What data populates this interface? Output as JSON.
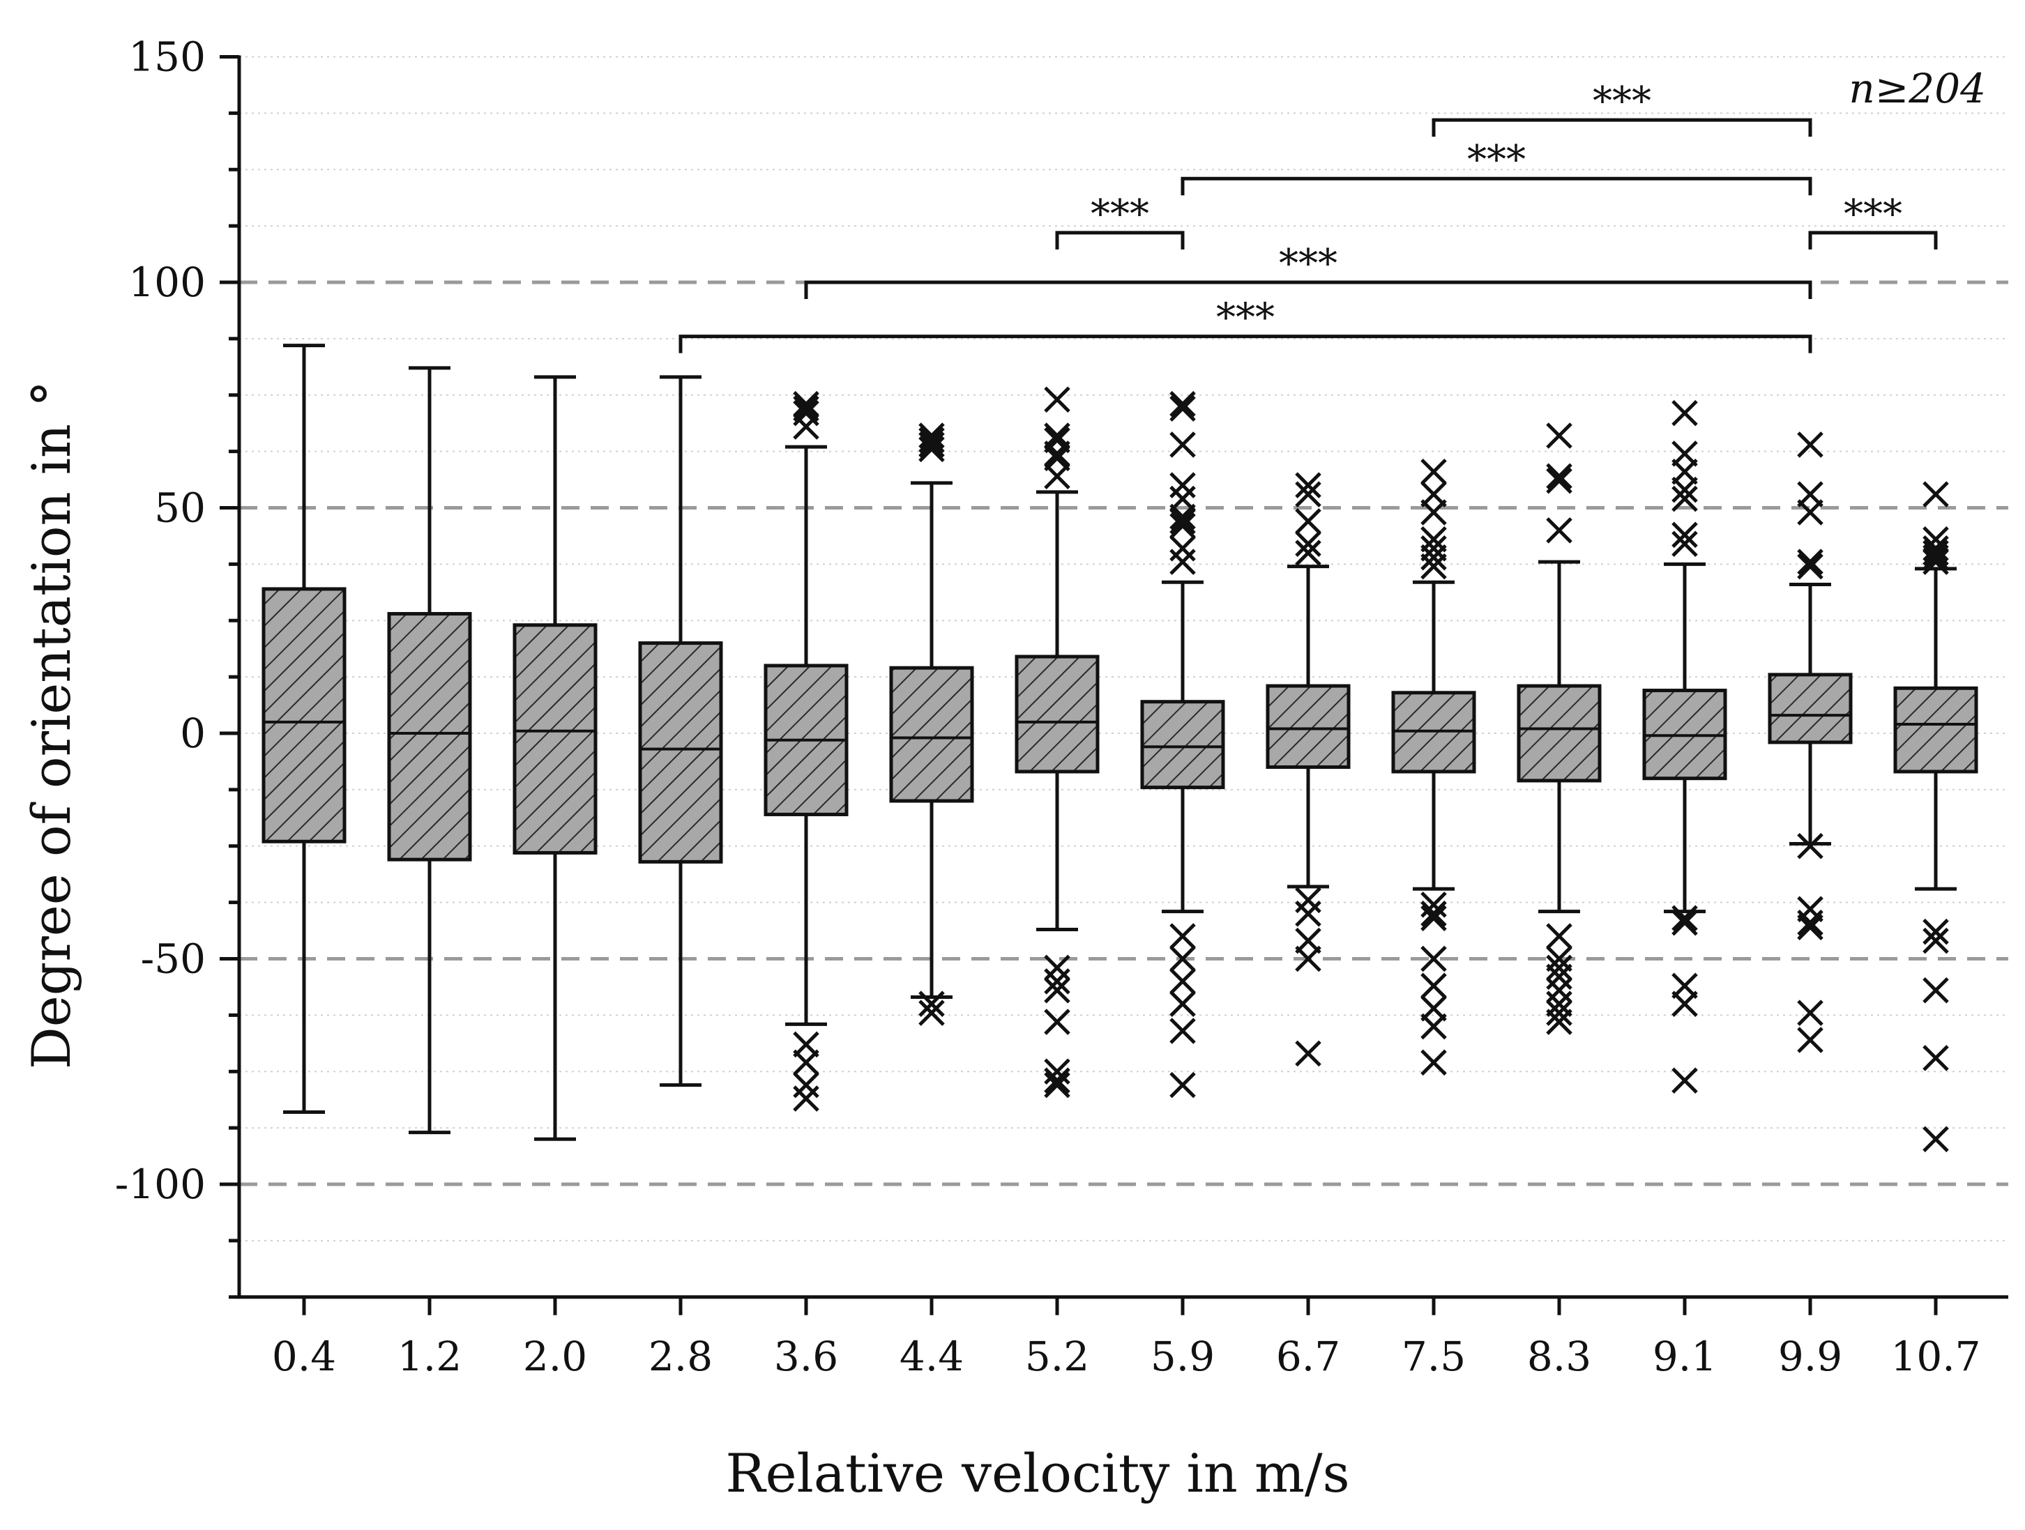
{
  "chart_data": {
    "type": "box",
    "title": "",
    "xlabel": "Relative velocity in m/s",
    "ylabel": "Degree of orientation in °",
    "ylim": [
      -125,
      150
    ],
    "yticks": [
      150,
      100,
      50,
      0,
      -50,
      -100
    ],
    "ytick_labels": [
      "150",
      "100",
      "50",
      "0",
      "-50",
      "-100"
    ],
    "reference_lines": [
      100,
      50,
      -50,
      -100
    ],
    "annotation": "n≥204",
    "categories": [
      "0.4",
      "1.2",
      "2.0",
      "2.8",
      "3.6",
      "4.4",
      "5.2",
      "5.9",
      "6.7",
      "7.5",
      "8.3",
      "9.1",
      "9.9",
      "10.7"
    ],
    "boxes": [
      {
        "q1": -24,
        "median": 2.5,
        "q3": 32,
        "whisker_low": -84,
        "whisker_high": 86,
        "outliers": []
      },
      {
        "q1": -28,
        "median": 0,
        "q3": 26.5,
        "whisker_low": -88.5,
        "whisker_high": 81,
        "outliers": []
      },
      {
        "q1": -26.5,
        "median": 0.5,
        "q3": 24,
        "whisker_low": -90,
        "whisker_high": 79,
        "outliers": []
      },
      {
        "q1": -28.5,
        "median": -3.5,
        "q3": 20,
        "whisker_low": -78,
        "whisker_high": 79,
        "outliers": []
      },
      {
        "q1": -18,
        "median": -1.5,
        "q3": 15,
        "whisker_low": -64.5,
        "whisker_high": 63.5,
        "outliers": [
          73,
          72,
          71,
          68,
          -69,
          -73,
          -78,
          -81
        ]
      },
      {
        "q1": -15,
        "median": -1,
        "q3": 14.5,
        "whisker_low": -58.5,
        "whisker_high": 55.5,
        "outliers": [
          66,
          65,
          64,
          63,
          -60,
          -62
        ]
      },
      {
        "q1": -8.5,
        "median": 2.5,
        "q3": 17,
        "whisker_low": -43.5,
        "whisker_high": 53.5,
        "outliers": [
          74,
          66,
          65,
          62,
          61,
          57,
          -52,
          -55,
          -57,
          -64,
          -75,
          -77,
          -78
        ]
      },
      {
        "q1": -12,
        "median": -3,
        "q3": 7,
        "whisker_low": -39.5,
        "whisker_high": 33.5,
        "outliers": [
          73,
          72,
          64,
          55,
          52,
          48,
          47,
          46,
          41,
          38,
          -45,
          -50,
          -55,
          -60,
          -66,
          -78
        ]
      },
      {
        "q1": -7.5,
        "median": 1,
        "q3": 10.5,
        "whisker_low": -34,
        "whisker_high": 37,
        "outliers": [
          55,
          53,
          47,
          42,
          40,
          -37,
          -40,
          -46,
          -50,
          -71
        ]
      },
      {
        "q1": -8.5,
        "median": 0.5,
        "q3": 9,
        "whisker_low": -34.5,
        "whisker_high": 33.5,
        "outliers": [
          58,
          53,
          49,
          43,
          41,
          39,
          37,
          -38,
          -40,
          -41,
          -50,
          -56,
          -61,
          -65,
          -73
        ]
      },
      {
        "q1": -10.5,
        "median": 1,
        "q3": 10.5,
        "whisker_low": -39.5,
        "whisker_high": 38,
        "outliers": [
          66,
          57,
          56,
          45,
          -45,
          -50,
          -52,
          -54,
          -57,
          -60,
          -62,
          -64
        ]
      },
      {
        "q1": -10,
        "median": -0.5,
        "q3": 9.5,
        "whisker_low": -39.5,
        "whisker_high": 37.5,
        "outliers": [
          71,
          62,
          58,
          54,
          52,
          44,
          42,
          -41,
          -42,
          -56,
          -60,
          -77
        ]
      },
      {
        "q1": -2,
        "median": 4,
        "q3": 13,
        "whisker_low": -24.5,
        "whisker_high": 33,
        "outliers": [
          64,
          53,
          49,
          38,
          37,
          -25,
          -39,
          -42,
          -43,
          -62,
          -68
        ]
      },
      {
        "q1": -8.5,
        "median": 2,
        "q3": 10,
        "whisker_low": -34.5,
        "whisker_high": 36.5,
        "outliers": [
          53,
          43,
          41,
          40,
          39,
          38,
          -44,
          -46,
          -57,
          -72,
          -90
        ]
      }
    ],
    "significance_brackets": [
      {
        "from": "7.5",
        "to": "9.9",
        "y": 136,
        "label": "***"
      },
      {
        "from": "5.9",
        "to": "9.9",
        "y": 123,
        "label": "***"
      },
      {
        "from": "5.2",
        "to": "5.9",
        "y": 111,
        "label": "***"
      },
      {
        "from": "9.9",
        "to": "10.7",
        "y": 111,
        "label": "***"
      },
      {
        "from": "3.6",
        "to": "9.9",
        "y": 100,
        "label": "***"
      },
      {
        "from": "2.8",
        "to": "9.9",
        "y": 88,
        "label": "***"
      }
    ],
    "colors": {
      "box_fill": "#a8a8a8",
      "hatch": "#2a2a2a",
      "reference_line": "#9a9a9a",
      "grid": "#d0d0d0",
      "ink": "#111111"
    }
  }
}
